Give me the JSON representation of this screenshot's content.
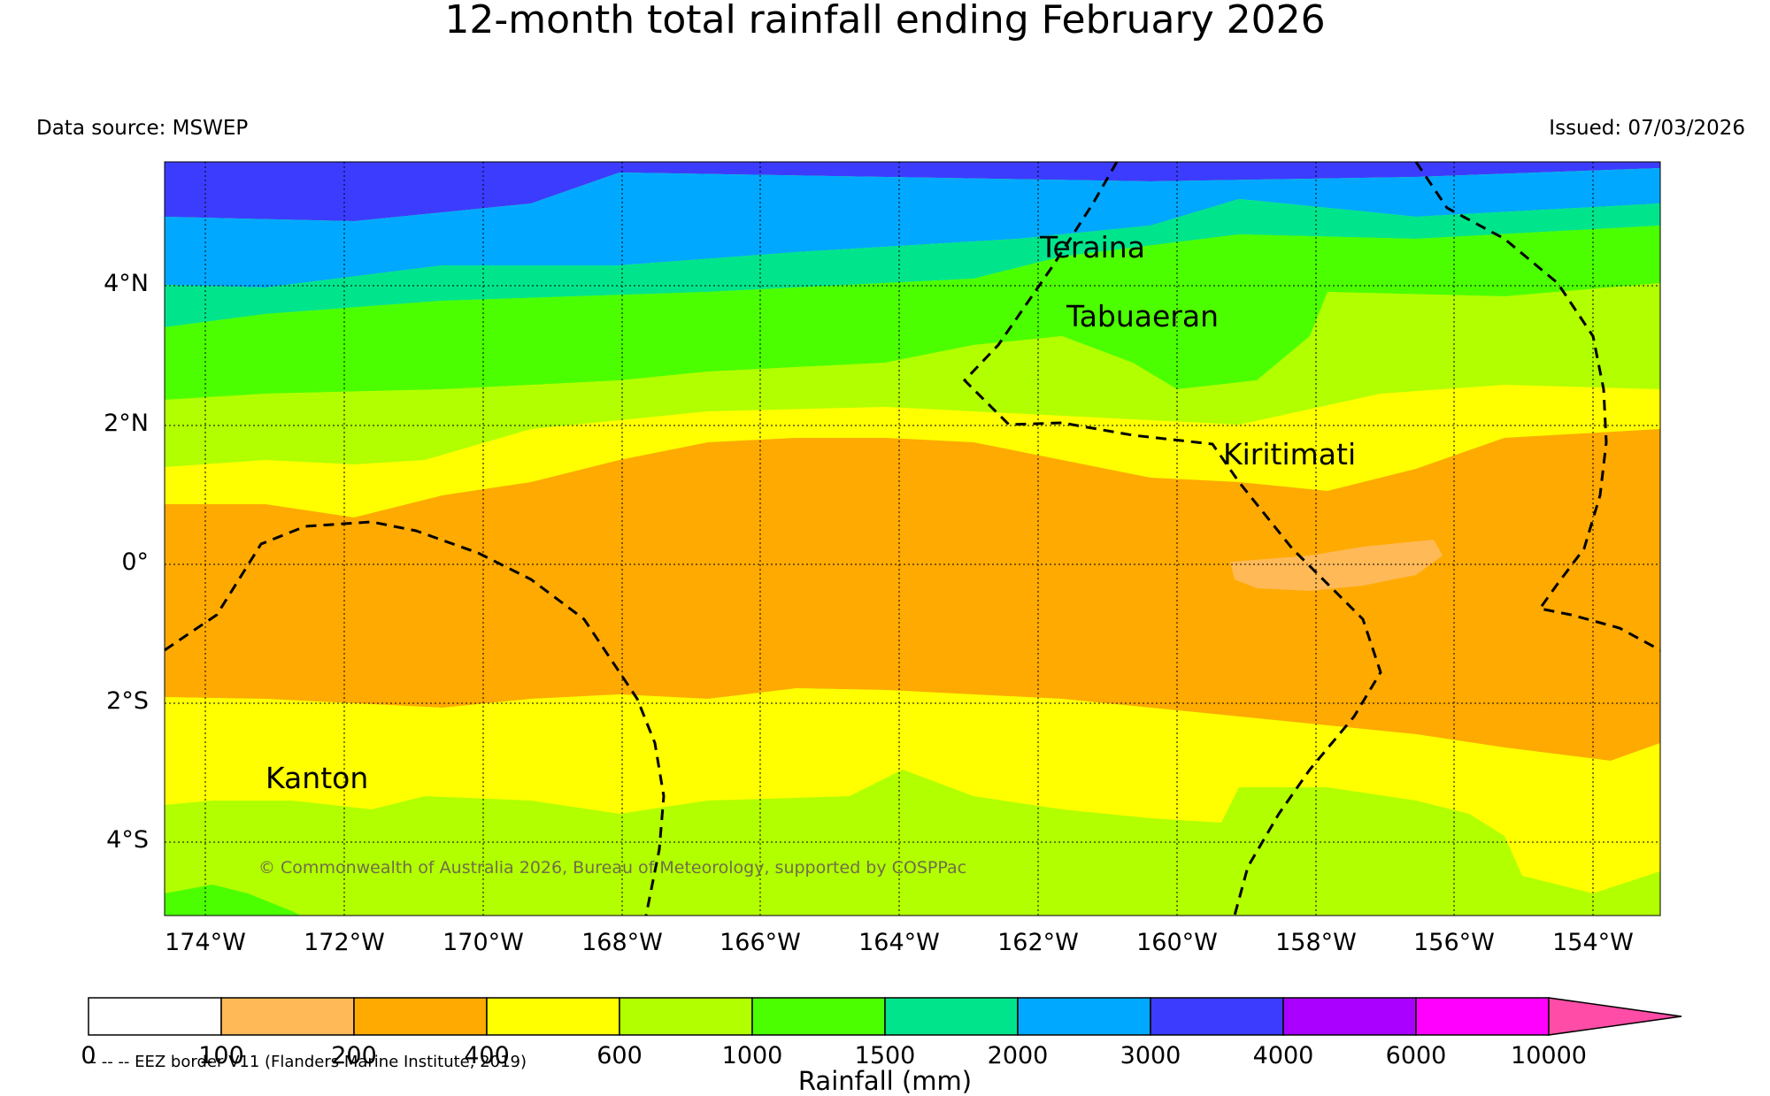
{
  "title": "12-month total rainfall ending February 2026",
  "data_source": "Data source: MSWEP",
  "issued": "Issued: 07/03/2026",
  "copyright": "© Commonwealth of Australia 2026, Bureau of Meteorology, supported by COSPPac",
  "eez_legend": "-- -- -- EEZ border V11 (Flanders Marine Institute, 2019)",
  "colorbar_title": "Rainfall (mm)",
  "lat_labels": [
    "4°N",
    "2°N",
    "0°",
    "2°S",
    "4°S"
  ],
  "lon_labels": [
    "174°W",
    "172°W",
    "170°W",
    "168°W",
    "166°W",
    "164°W",
    "162°W",
    "160°W",
    "158°W",
    "156°W",
    "154°W"
  ],
  "places": {
    "teraina": "Teraina",
    "tabuaeran": "Tabuaeran",
    "kiritimati": "Kiritimati",
    "kanton": "Kanton"
  },
  "colorbar": {
    "ticks": [
      "0",
      "100",
      "200",
      "400",
      "600",
      "1000",
      "1500",
      "2000",
      "3000",
      "4000",
      "6000",
      "10000"
    ],
    "colors": [
      "#ffffff",
      "#ffb957",
      "#ffaa00",
      "#ffff00",
      "#b2ff00",
      "#4cff00",
      "#00e58c",
      "#00a9ff",
      "#3c3cff",
      "#aa00ff",
      "#ff00ff",
      "#ff4ca6"
    ]
  }
}
